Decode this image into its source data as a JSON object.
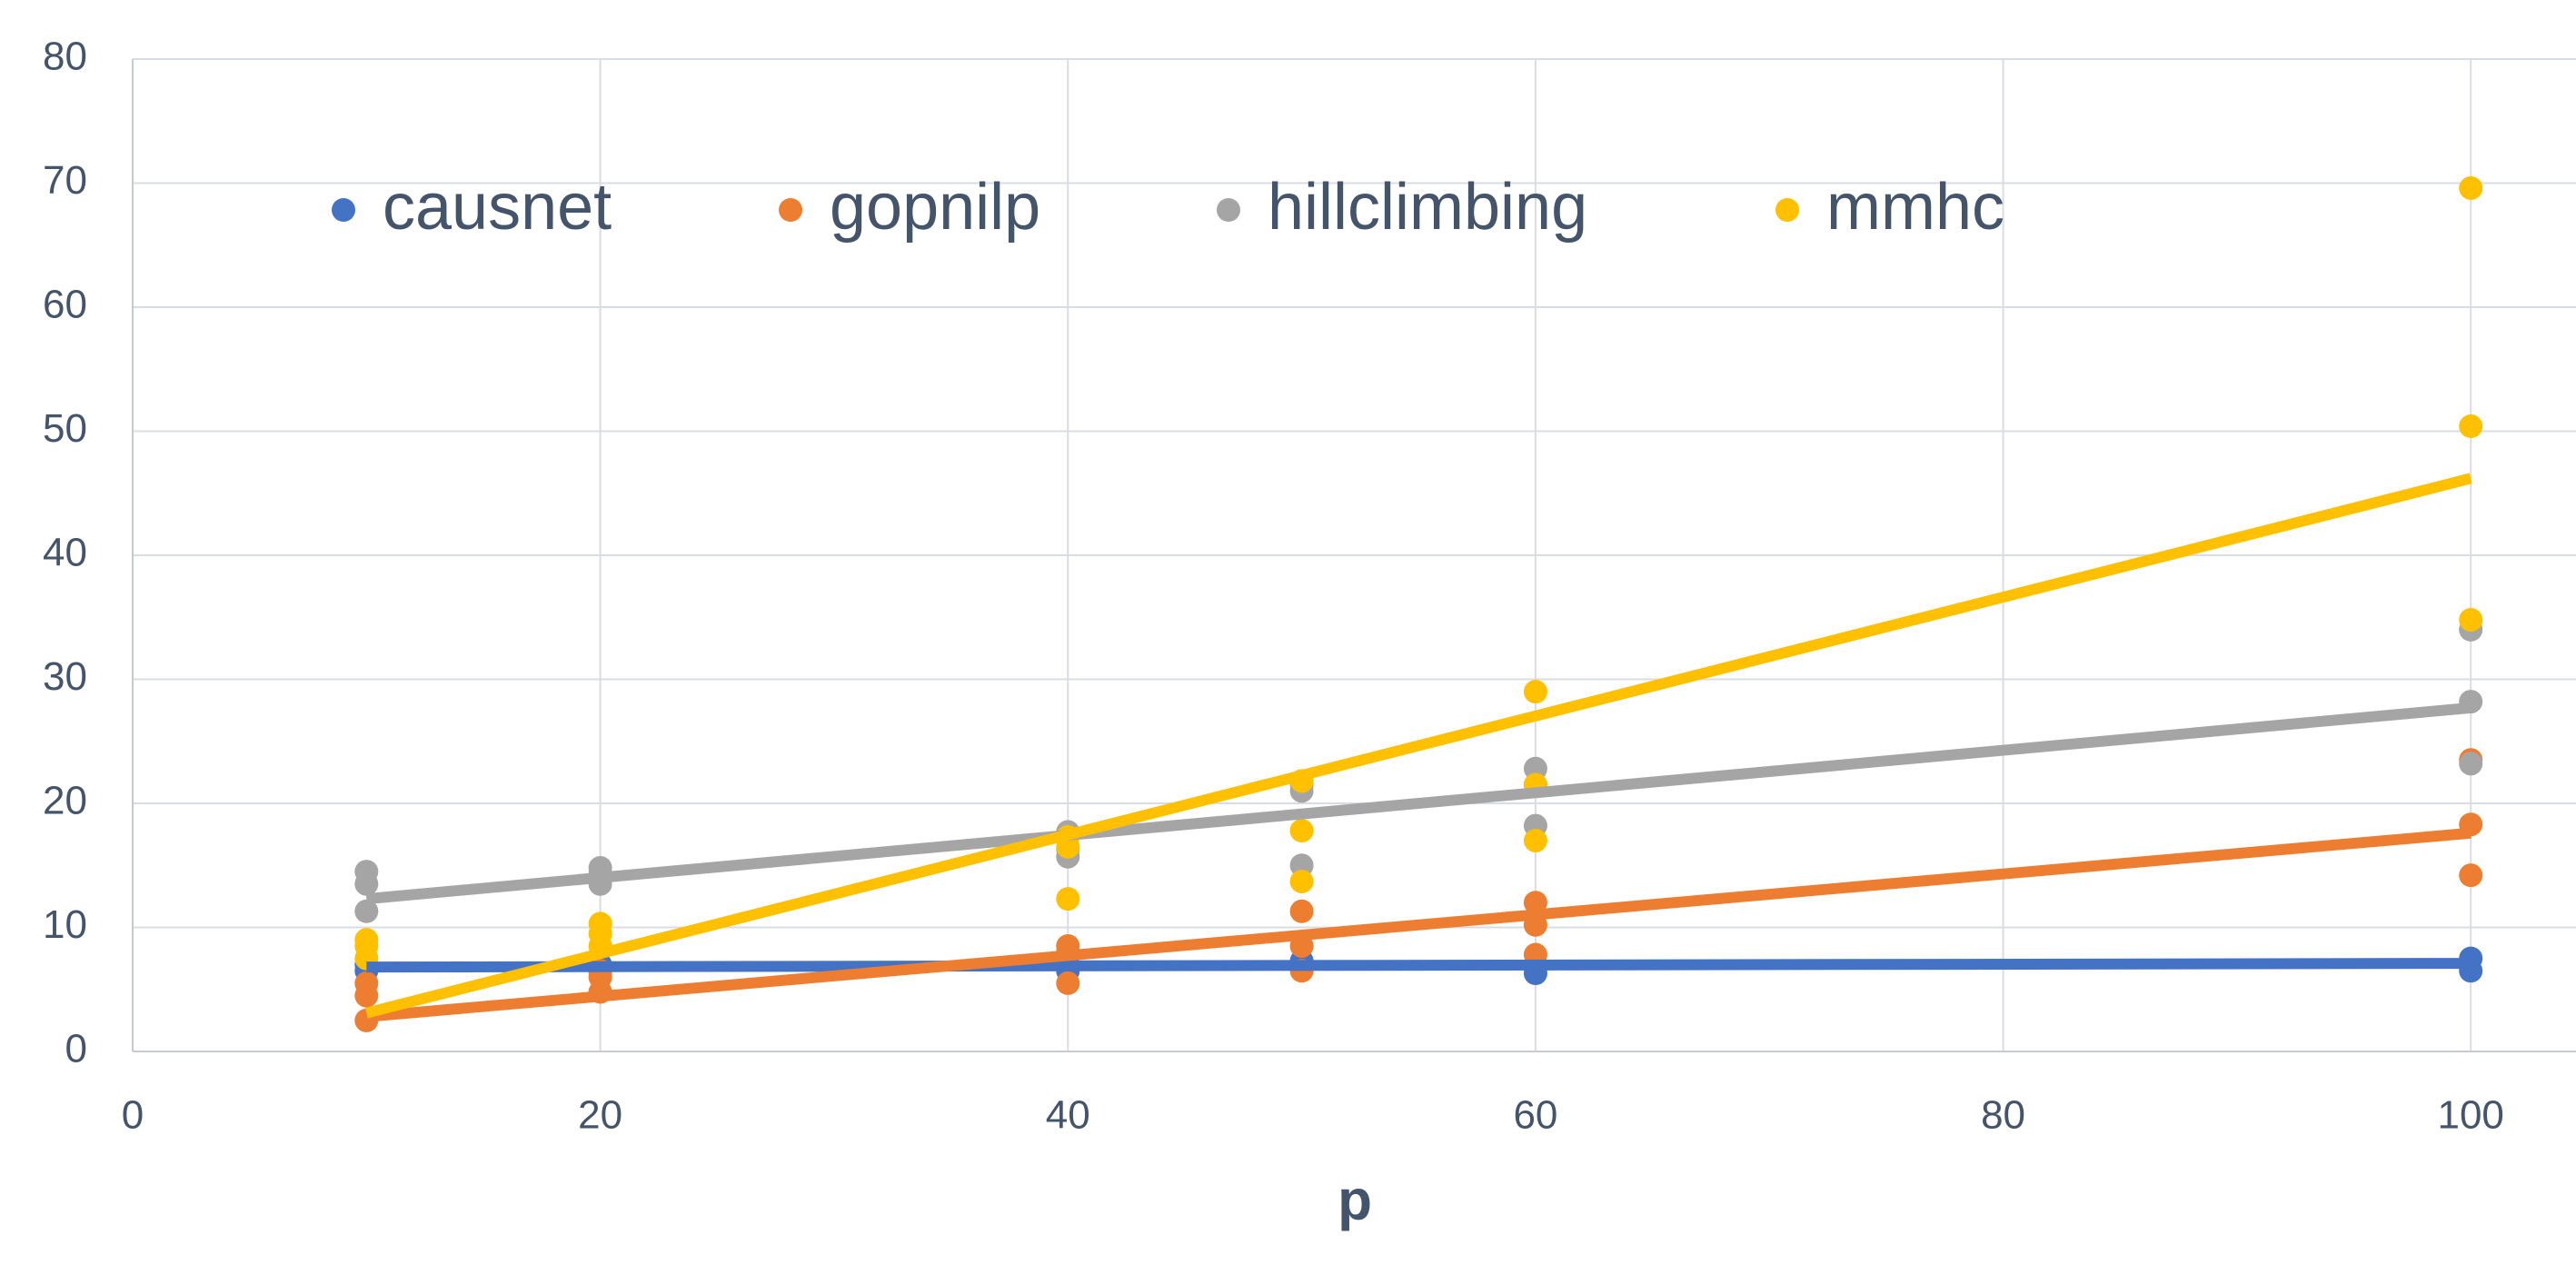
{
  "chart_data": {
    "type": "scatter",
    "x_label": "p",
    "xlim": [
      0,
      104.5
    ],
    "xticks": [
      0,
      20,
      40,
      60,
      80,
      100
    ],
    "ylim": [
      0,
      80
    ],
    "yticks": [
      0,
      10,
      20,
      30,
      40,
      50,
      60,
      70,
      80
    ],
    "grid": true,
    "legend": "top-left",
    "series": [
      {
        "name": "causnet",
        "color": "#4472c4",
        "x": [
          10,
          10,
          20,
          20,
          40,
          40,
          50,
          50,
          60,
          60,
          100,
          100
        ],
        "values": [
          6.5,
          7,
          6.5,
          7,
          6.5,
          7,
          6.8,
          7.3,
          6.3,
          7,
          6.5,
          7.5
        ],
        "trendline": {
          "x": [
            10,
            100
          ],
          "values": [
            6.8,
            7.1
          ]
        }
      },
      {
        "name": "gopnilp",
        "color": "#ed7d31",
        "x": [
          10,
          10,
          10,
          20,
          20,
          20,
          40,
          40,
          40,
          50,
          50,
          50,
          60,
          60,
          60,
          100,
          100,
          100
        ],
        "values": [
          2.5,
          4.5,
          5.5,
          4.8,
          6,
          6.5,
          5.5,
          8,
          8.5,
          6.5,
          8.5,
          11.3,
          7.8,
          10.2,
          12,
          14.2,
          18.3,
          23.5
        ],
        "trendline": {
          "x": [
            10,
            100
          ],
          "values": [
            2.8,
            17.6
          ]
        }
      },
      {
        "name": "hillclimbing",
        "color": "#a5a5a5",
        "x": [
          10,
          10,
          10,
          20,
          20,
          20,
          40,
          40,
          40,
          50,
          50,
          50,
          60,
          60,
          60,
          100,
          100,
          100
        ],
        "values": [
          11.3,
          13.5,
          14.5,
          13.5,
          14.3,
          14.8,
          15.7,
          16.3,
          17.7,
          15,
          21,
          21.5,
          18.2,
          22.8,
          21.5,
          23.2,
          28.2,
          34
        ],
        "trendline": {
          "x": [
            10,
            100
          ],
          "values": [
            12.3,
            27.7
          ]
        }
      },
      {
        "name": "mmhc",
        "color": "#ffc000",
        "x": [
          10,
          10,
          10,
          20,
          20,
          20,
          40,
          40,
          40,
          50,
          50,
          50,
          60,
          60,
          60,
          100,
          100,
          100
        ],
        "values": [
          7.5,
          8.5,
          9,
          8.5,
          9.5,
          10.3,
          12.3,
          16.5,
          17.3,
          13.7,
          17.8,
          21.8,
          17,
          21.5,
          29,
          34.8,
          50.4,
          69.6
        ],
        "trendline": {
          "x": [
            10,
            100
          ],
          "values": [
            3.1,
            46.2
          ]
        }
      }
    ]
  }
}
